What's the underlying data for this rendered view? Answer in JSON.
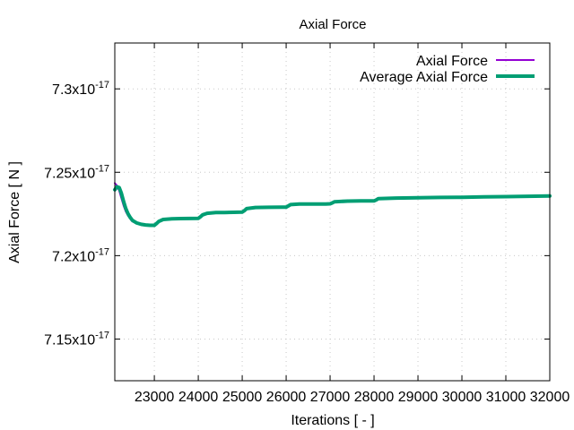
{
  "chart_data": {
    "type": "line",
    "title": "Axial Force",
    "xlabel": "Iterations [ - ]",
    "ylabel": "Axial Force [ N ]",
    "xlim": [
      22100,
      32000
    ],
    "ylim": [
      7.125e-17,
      7.3275e-17
    ],
    "x_ticks": [
      {
        "value": 23000,
        "label": "23000"
      },
      {
        "value": 24000,
        "label": "24000"
      },
      {
        "value": 25000,
        "label": "25000"
      },
      {
        "value": 26000,
        "label": "26000"
      },
      {
        "value": 27000,
        "label": "27000"
      },
      {
        "value": 28000,
        "label": "28000"
      },
      {
        "value": 29000,
        "label": "29000"
      },
      {
        "value": 30000,
        "label": "30000"
      },
      {
        "value": 31000,
        "label": "31000"
      },
      {
        "value": 32000,
        "label": "32000"
      }
    ],
    "y_ticks": [
      {
        "value": 7.15e-17,
        "mantissa": "7.15x10",
        "exponent": "-17"
      },
      {
        "value": 7.2e-17,
        "mantissa": "7.2x10",
        "exponent": "-17"
      },
      {
        "value": 7.25e-17,
        "mantissa": "7.25x10",
        "exponent": "-17"
      },
      {
        "value": 7.3e-17,
        "mantissa": "7.3x10",
        "exponent": "-17"
      }
    ],
    "grid": true,
    "legend_position": "top-right",
    "series": [
      {
        "name": "Axial Force",
        "color": "#9400d3",
        "x": [
          22100,
          22150,
          22200,
          22250,
          22300,
          22350,
          22400,
          22450,
          22500,
          22600,
          22700,
          22800,
          22900,
          23000,
          23050,
          23100,
          23200,
          23400,
          23600,
          23800,
          24000,
          24050,
          24100,
          24200,
          24400,
          24600,
          24800,
          25000,
          25050,
          25100,
          25300,
          25600,
          25900,
          26000,
          26050,
          26100,
          26300,
          26600,
          26900,
          27000,
          27050,
          27100,
          27400,
          27700,
          28000,
          28050,
          28100,
          28500,
          29000,
          29500,
          30000,
          30500,
          31000,
          31500,
          32000
        ],
        "y": [
          7.2435e-17,
          7.242e-17,
          7.239e-17,
          7.2345e-17,
          7.23e-17,
          7.2265e-17,
          7.224e-17,
          7.2222e-17,
          7.2205e-17,
          7.2193e-17,
          7.2186e-17,
          7.2183e-17,
          7.2182e-17,
          7.2182e-17,
          7.2195e-17,
          7.2208e-17,
          7.2218e-17,
          7.2221e-17,
          7.2222e-17,
          7.2223e-17,
          7.2224e-17,
          7.2236e-17,
          7.2248e-17,
          7.2255e-17,
          7.2258e-17,
          7.2259e-17,
          7.226e-17,
          7.2261e-17,
          7.2273e-17,
          7.2285e-17,
          7.2289e-17,
          7.229e-17,
          7.2291e-17,
          7.2291e-17,
          7.23e-17,
          7.2307e-17,
          7.2309e-17,
          7.231e-17,
          7.231e-17,
          7.2311e-17,
          7.2318e-17,
          7.2325e-17,
          7.2327e-17,
          7.2328e-17,
          7.2328e-17,
          7.2336e-17,
          7.2343e-17,
          7.2345e-17,
          7.2347e-17,
          7.2349e-17,
          7.235e-17,
          7.2352e-17,
          7.2354e-17,
          7.2356e-17,
          7.2358e-17
        ]
      },
      {
        "name": "Average Axial Force",
        "color": "#009e73",
        "x": [
          22100,
          22150,
          22200,
          22250,
          22300,
          22350,
          22400,
          22450,
          22500,
          22600,
          22700,
          22800,
          22900,
          23000,
          23050,
          23100,
          23200,
          23400,
          23600,
          23800,
          24000,
          24050,
          24100,
          24200,
          24400,
          24600,
          24800,
          25000,
          25050,
          25100,
          25300,
          25600,
          25900,
          26000,
          26050,
          26100,
          26300,
          26600,
          26900,
          27000,
          27050,
          27100,
          27400,
          27700,
          28000,
          28050,
          28100,
          28500,
          29000,
          29500,
          30000,
          30500,
          31000,
          31500,
          32000
        ],
        "y": [
          7.2395e-17,
          7.2413e-17,
          7.2408e-17,
          7.2375e-17,
          7.2325e-17,
          7.2283e-17,
          7.2252e-17,
          7.223e-17,
          7.2212e-17,
          7.2196e-17,
          7.2188e-17,
          7.2184e-17,
          7.2182e-17,
          7.2182e-17,
          7.2192e-17,
          7.2205e-17,
          7.2217e-17,
          7.2221e-17,
          7.2222e-17,
          7.2223e-17,
          7.2224e-17,
          7.2233e-17,
          7.2245e-17,
          7.2254e-17,
          7.2258e-17,
          7.2259e-17,
          7.226e-17,
          7.2261e-17,
          7.227e-17,
          7.2282e-17,
          7.2289e-17,
          7.229e-17,
          7.2291e-17,
          7.2291e-17,
          7.2298e-17,
          7.2306e-17,
          7.2309e-17,
          7.231e-17,
          7.231e-17,
          7.2311e-17,
          7.2316e-17,
          7.2323e-17,
          7.2327e-17,
          7.2328e-17,
          7.2328e-17,
          7.2334e-17,
          7.2342e-17,
          7.2345e-17,
          7.2347e-17,
          7.2349e-17,
          7.235e-17,
          7.2352e-17,
          7.2354e-17,
          7.2356e-17,
          7.2358e-17
        ]
      }
    ]
  }
}
